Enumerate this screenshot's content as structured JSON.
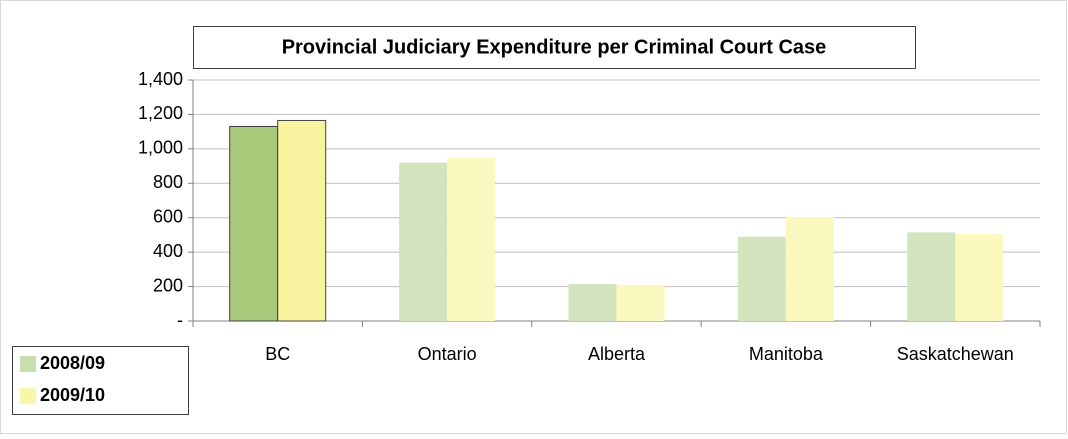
{
  "chart_data": {
    "type": "bar",
    "title": "Provincial Judiciary Expenditure per Criminal Court Case",
    "categories": [
      "BC",
      "Ontario",
      "Alberta",
      "Manitoba",
      "Saskatchewan"
    ],
    "series": [
      {
        "name": "2008/09",
        "color": "#c9ddae",
        "colors": [
          "#a9c97a",
          "#d2e3bd",
          "#d2e3bd",
          "#d2e3bd",
          "#d2e3bd"
        ],
        "values": [
          1130,
          920,
          215,
          490,
          515
        ]
      },
      {
        "name": "2009/10",
        "color": "#f9f6aa",
        "colors": [
          "#f8f39e",
          "#fbf8bf",
          "#fbf8bf",
          "#fbf8bf",
          "#fbf8bf"
        ],
        "values": [
          1165,
          950,
          210,
          605,
          505
        ]
      }
    ],
    "ylim": [
      0,
      1400
    ],
    "yticks": [
      {
        "value": 0,
        "label": "-"
      },
      200,
      400,
      600,
      800,
      {
        "value": 1000,
        "label": "1,000"
      },
      {
        "value": 1200,
        "label": "1,200"
      },
      {
        "value": 1400,
        "label": "1,400"
      }
    ],
    "grid": true,
    "legend": "bottom-left"
  }
}
